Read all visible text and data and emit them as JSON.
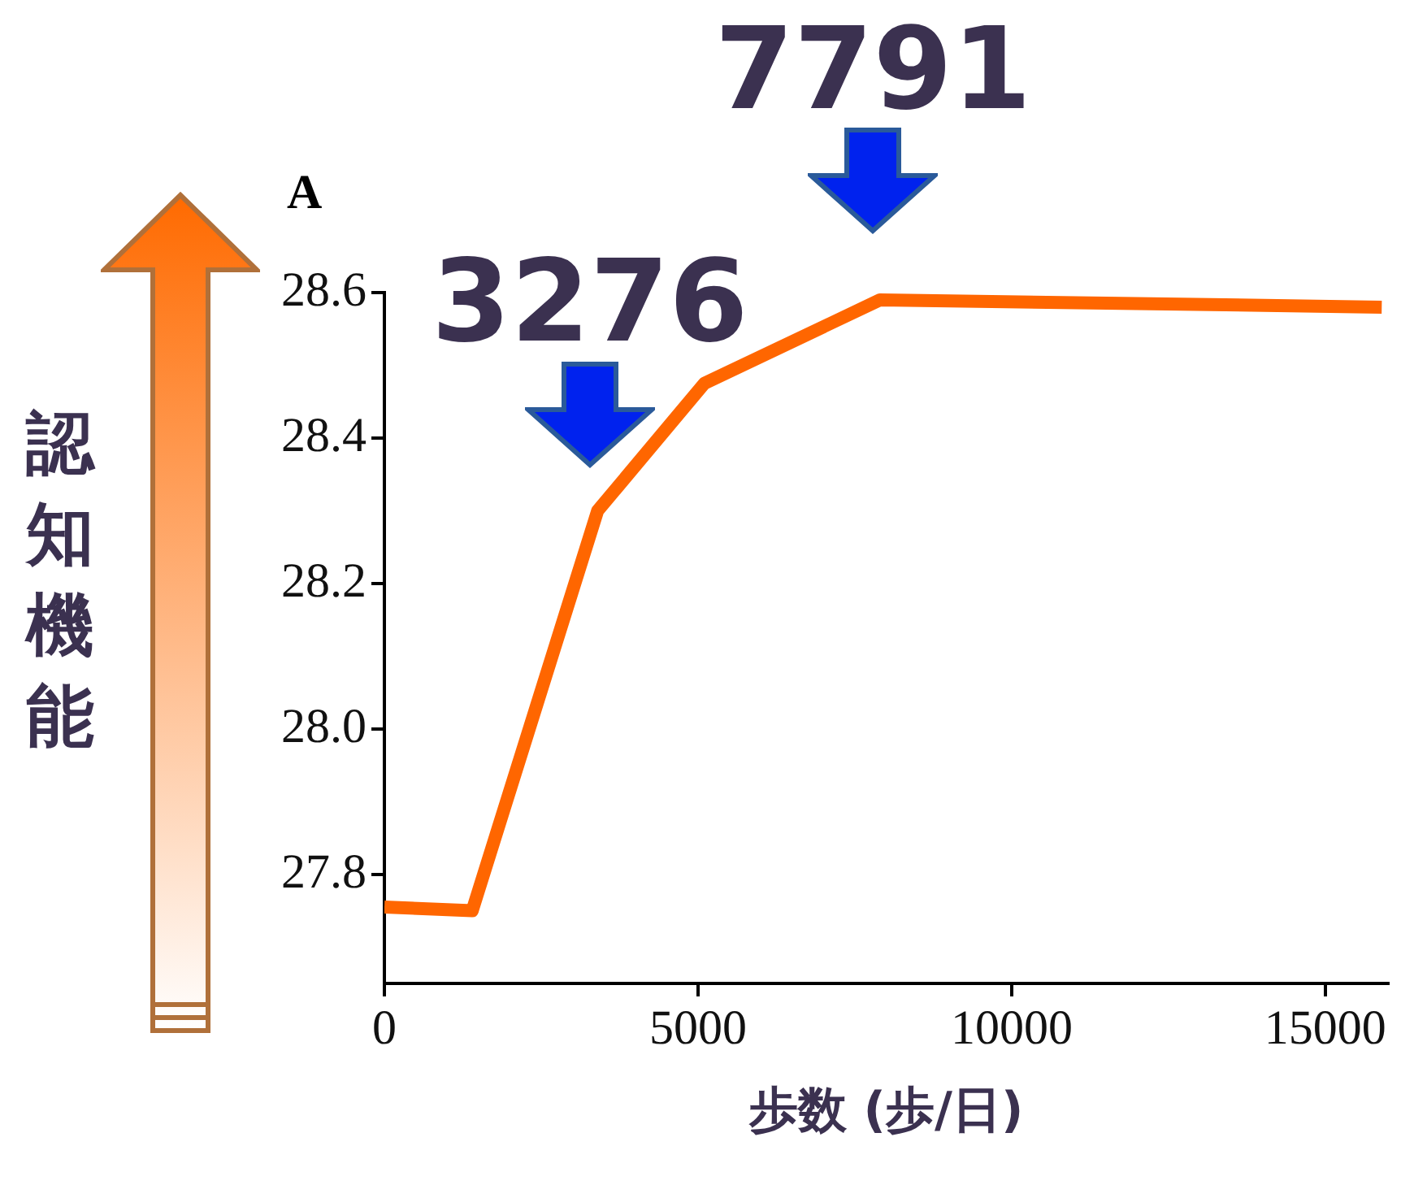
{
  "chart_data": {
    "type": "line",
    "title": "A",
    "xlabel": "歩数 (歩/日)",
    "ylabel": "認知機能",
    "x": [
      0,
      1400,
      3400,
      5100,
      7900,
      15900
    ],
    "series": [
      {
        "color": "#ff6600",
        "values": [
          27.755,
          27.75,
          28.3,
          28.475,
          28.59,
          28.58
        ]
      }
    ],
    "xlim": [
      0,
      16000
    ],
    "xticks": [
      0,
      5000,
      10000,
      15000
    ],
    "ylim": [
      27.65,
      28.6
    ],
    "yticks": [
      27.8,
      {
        "value": 28,
        "label": "28.0"
      },
      28.2,
      28.4,
      28.6
    ],
    "annotations": [
      {
        "text": "3276",
        "x": 3276,
        "y": 28.27
      },
      {
        "text": "7791",
        "x": 7791,
        "y": 28.59
      }
    ],
    "grid": false,
    "legend": false,
    "marker": "none",
    "line_style": "solid"
  }
}
